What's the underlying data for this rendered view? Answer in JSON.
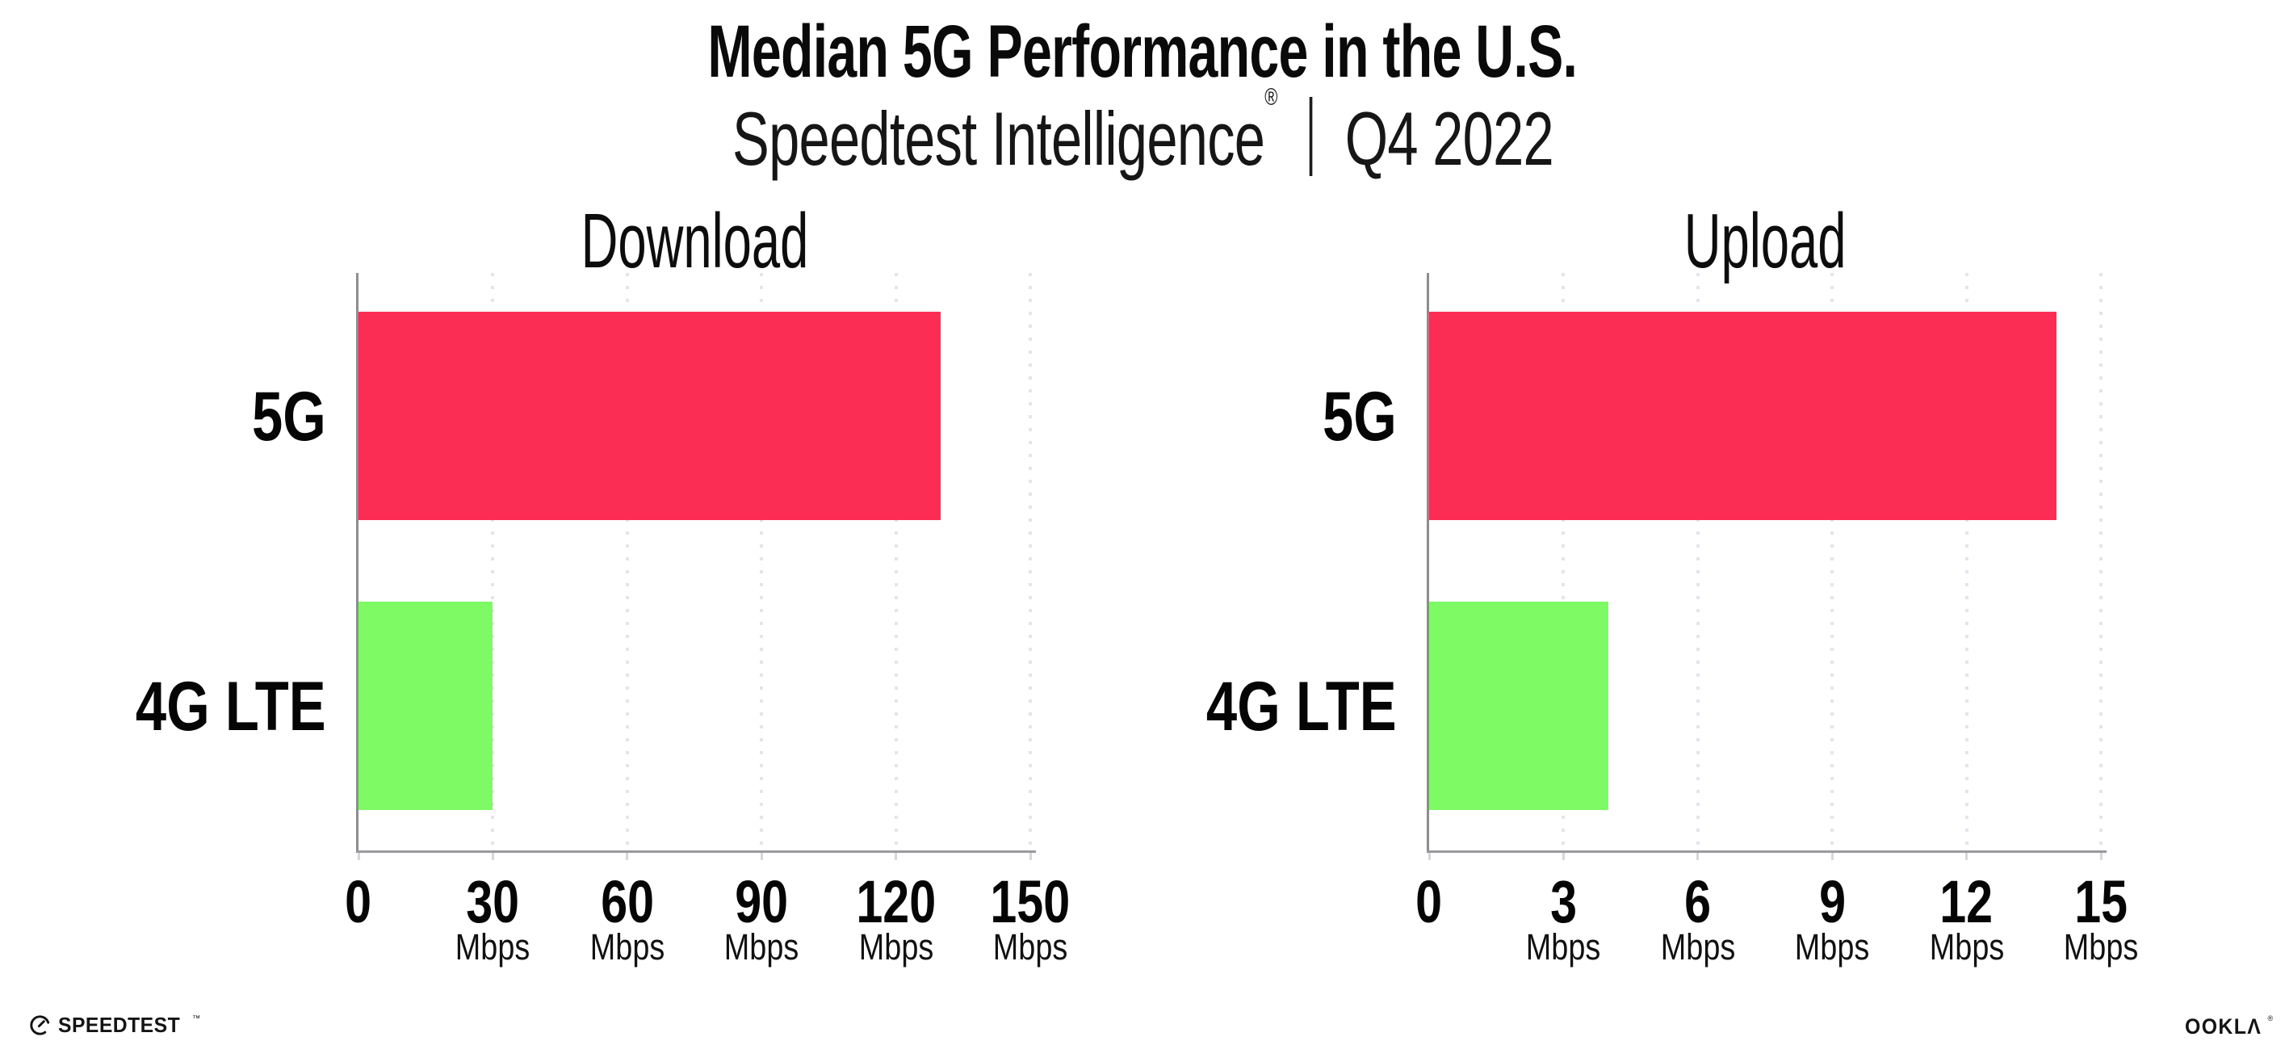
{
  "header": {
    "title": "Median 5G Performance in the U.S.",
    "subtitle_brand": "Speedtest Intelligence",
    "subtitle_reg": "®",
    "subtitle_period": "Q4 2022"
  },
  "chart_data": [
    {
      "type": "bar",
      "orientation": "horizontal",
      "title": "Download",
      "categories": [
        "5G",
        "4G LTE"
      ],
      "values": [
        130,
        30
      ],
      "unit": "Mbps",
      "xlim": [
        0,
        150
      ],
      "grid": "dotted-vertical",
      "legend": "none",
      "bar_colors": [
        "#FC2D55",
        "#7DFA64"
      ],
      "ticks": [
        {
          "label": "0",
          "value": 0,
          "unit": ""
        },
        {
          "label": "30",
          "value": 30,
          "unit": "Mbps"
        },
        {
          "label": "60",
          "value": 60,
          "unit": "Mbps"
        },
        {
          "label": "90",
          "value": 90,
          "unit": "Mbps"
        },
        {
          "label": "120",
          "value": 120,
          "unit": "Mbps"
        },
        {
          "label": "150",
          "value": 150,
          "unit": "Mbps"
        }
      ]
    },
    {
      "type": "bar",
      "orientation": "horizontal",
      "title": "Upload",
      "categories": [
        "5G",
        "4G LTE"
      ],
      "values": [
        14,
        4
      ],
      "unit": "Mbps",
      "xlim": [
        0,
        15
      ],
      "grid": "dotted-vertical",
      "legend": "none",
      "bar_colors": [
        "#FC2D55",
        "#7DFA64"
      ],
      "ticks": [
        {
          "label": "0",
          "value": 0,
          "unit": ""
        },
        {
          "label": "3",
          "value": 3,
          "unit": "Mbps"
        },
        {
          "label": "6",
          "value": 6,
          "unit": "Mbps"
        },
        {
          "label": "9",
          "value": 9,
          "unit": "Mbps"
        },
        {
          "label": "12",
          "value": 12,
          "unit": "Mbps"
        },
        {
          "label": "15",
          "value": 15,
          "unit": "Mbps"
        }
      ]
    }
  ],
  "footer": {
    "speedtest_label": "SPEEDTEST",
    "speedtest_tm": "™",
    "speedtest_icon": "gauge-icon",
    "ookla_label": "OOKLΛ",
    "ookla_reg": "®"
  },
  "colors": {
    "bar_5g": "#FC2D55",
    "bar_4g_lte": "#7DFA64",
    "gridline": "#E4E4EE",
    "axis": "#9A9A9E",
    "text": "#0A0A0A",
    "background": "#FFFFFF"
  }
}
